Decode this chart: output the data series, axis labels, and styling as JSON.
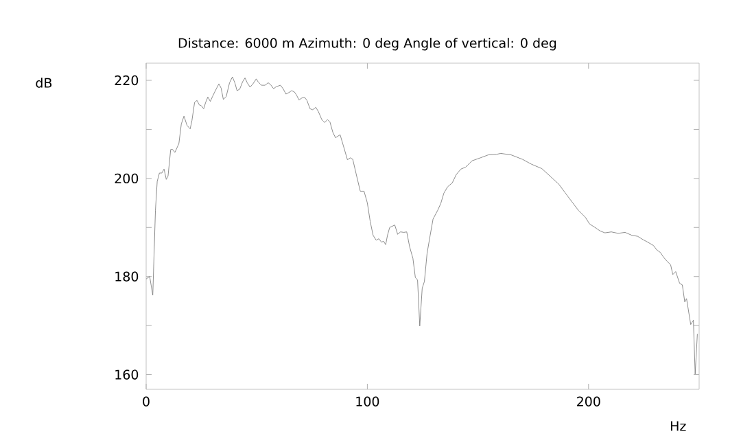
{
  "chart_data": {
    "type": "line",
    "title": "Distance: 6000 m   Azimuth:  0 deg   Angle of vertical:  0 deg",
    "xlabel": "Hz",
    "ylabel": "dB",
    "xlim": [
      0,
      250
    ],
    "ylim": [
      157,
      223.5
    ],
    "xticks": [
      0,
      100,
      200
    ],
    "yticks": [
      160,
      {
        "value": 170,
        "label": null
      },
      180,
      {
        "value": 190,
        "label": null
      },
      200,
      {
        "value": 210,
        "label": null
      },
      220
    ],
    "grid": false,
    "marker": "none",
    "line_style": "solid",
    "series": [
      {
        "color": "#808080",
        "x": [
          0,
          1.6,
          3,
          4.2,
          5,
          6,
          7.1,
          8.1,
          9.1,
          9.9,
          11.1,
          12,
          13,
          14.8,
          15.9,
          17.1,
          18.5,
          19.9,
          20.7,
          21.9,
          23,
          24,
          25,
          26,
          26.9,
          27.9,
          29,
          30,
          31.3,
          32.9,
          33.9,
          34.9,
          36.2,
          37.7,
          39,
          40.1,
          41.1,
          42.3,
          43.6,
          44.7,
          45.7,
          47,
          48.3,
          49.8,
          50.6,
          52.1,
          53.7,
          55.2,
          56.3,
          57.6,
          58.8,
          60.7,
          61.9,
          63.2,
          64.5,
          65.8,
          67.1,
          68.1,
          69.1,
          70.4,
          71.7,
          72.7,
          74.1,
          75.3,
          76.7,
          77.9,
          79.4,
          80.7,
          82,
          83.1,
          84.4,
          85.6,
          87.7,
          89.2,
          91,
          92.3,
          93.4,
          94.9,
          96.8,
          98.5,
          100,
          101.3,
          102.6,
          104,
          105.2,
          106.4,
          107.3,
          108.3,
          109.1,
          110.1,
          112.4,
          113.7,
          115,
          116.5,
          117.8,
          119.1,
          120.6,
          121.7,
          122.7,
          123.7,
          124.8,
          125.8,
          127,
          128.4,
          129.7,
          131.8,
          133.2,
          134.6,
          136.3,
          138.4,
          140.2,
          142.3,
          144.4,
          147.4,
          151.1,
          154.7,
          158.3,
          160.3,
          165,
          170.1,
          174.2,
          178.9,
          182.5,
          186.6,
          190.7,
          195.4,
          198.5,
          200.5,
          202.6,
          205.2,
          207.4,
          210.3,
          213.4,
          216.5,
          219.6,
          222.2,
          224.7,
          226.8,
          229.4,
          230.9,
          232.5,
          233.8,
          235.5,
          237.1,
          238.1,
          239.4,
          241.2,
          242.4,
          243.5,
          244.3,
          246.2,
          247.4,
          248.2,
          249.2
        ],
        "values": [
          179.5,
          180,
          176.2,
          193.5,
          199.4,
          201.1,
          201.1,
          201.9,
          199.8,
          200.5,
          205.9,
          205.9,
          205.3,
          207.1,
          211.1,
          212.7,
          210.8,
          210.1,
          211.8,
          215.5,
          215.9,
          215,
          214.8,
          214.2,
          215.5,
          216.6,
          215.7,
          216.7,
          217.9,
          219.3,
          218.4,
          216.1,
          216.7,
          219.5,
          220.7,
          219.5,
          217.9,
          218.2,
          219.7,
          220.5,
          219.5,
          218.6,
          219.3,
          220.3,
          219.7,
          219,
          219,
          219.5,
          219.1,
          218.3,
          218.7,
          219,
          218.3,
          217.2,
          217.5,
          217.9,
          217.6,
          216.9,
          216,
          216.4,
          216.5,
          215.9,
          214.2,
          214,
          214.5,
          213.6,
          212,
          211.4,
          212,
          211.5,
          209.4,
          208.3,
          208.9,
          206.6,
          203.8,
          204.2,
          203.9,
          201,
          197.4,
          197.4,
          195,
          191.2,
          188.4,
          187.4,
          187.7,
          187,
          187.2,
          186.5,
          188.4,
          190,
          190.5,
          188.6,
          189.1,
          189,
          189.1,
          186.1,
          183.7,
          179.8,
          179.3,
          169.9,
          177.6,
          179,
          184.7,
          188.4,
          191.7,
          193.5,
          194.9,
          197,
          198.3,
          199.1,
          200.8,
          201.9,
          202.3,
          203.6,
          204.2,
          204.8,
          204.9,
          205.1,
          204.8,
          203.9,
          202.9,
          202,
          200.5,
          198.8,
          196.3,
          193.5,
          192.1,
          190.7,
          190.1,
          189.3,
          188.9,
          189.1,
          188.8,
          189,
          188.4,
          188.2,
          187.5,
          187,
          186.3,
          185.4,
          184.9,
          184,
          183.1,
          182.4,
          180.4,
          181,
          178.6,
          178.3,
          174.8,
          175.5,
          170.2,
          171.1,
          160.1,
          168.3
        ]
      }
    ]
  }
}
